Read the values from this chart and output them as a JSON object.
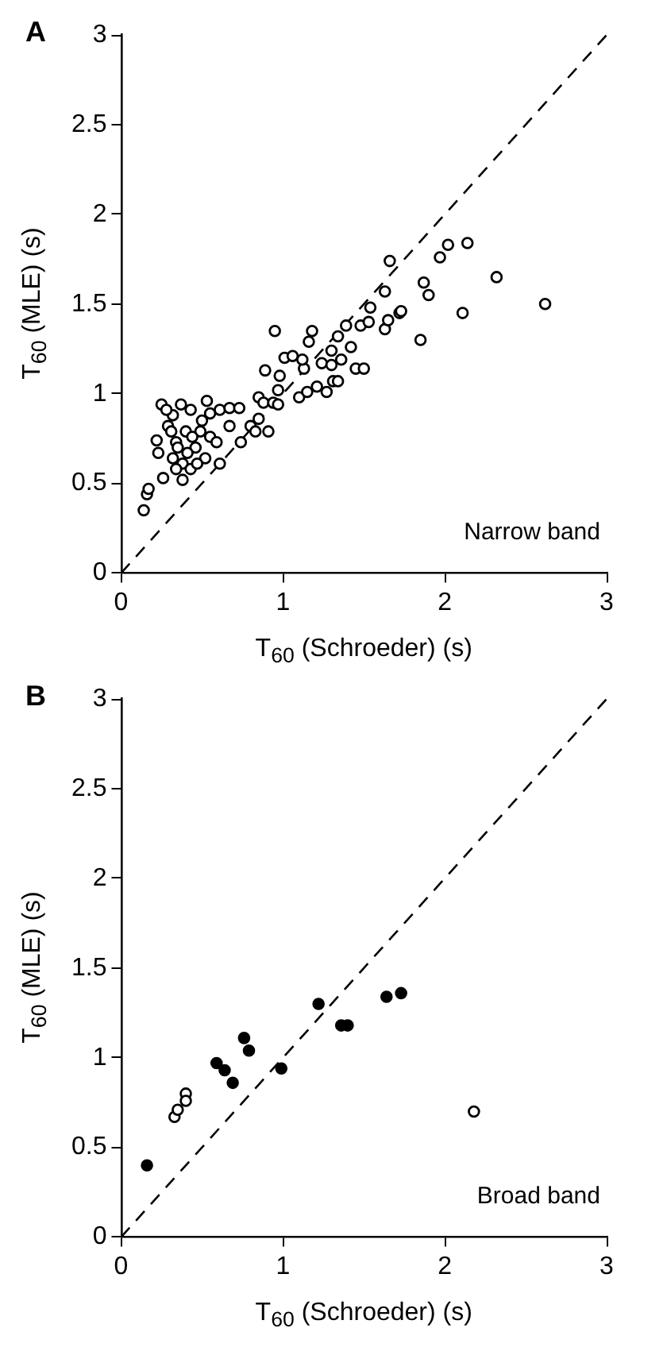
{
  "chart_data": [
    {
      "type": "scatter",
      "title": "A",
      "xlabel": "T$_{60}$ (Schroeder) (s)",
      "ylabel": "T$_{60}$ (MLE) (s)",
      "xlim": [
        0,
        3
      ],
      "ylim": [
        0,
        3
      ],
      "xticks": [
        0,
        1,
        2,
        3
      ],
      "yticks": [
        0,
        0.5,
        1,
        1.5,
        2,
        2.5,
        3
      ],
      "marker": "circle",
      "annotations": [
        "Narrow band"
      ],
      "series": [
        {
          "color": "#ffffff",
          "x": [
            0.14,
            0.16,
            0.17,
            0.25,
            0.22,
            0.23,
            0.26,
            0.38,
            0.29,
            0.32,
            0.37,
            0.43,
            0.53,
            0.55,
            0.61,
            0.67,
            0.73,
            0.34,
            0.4,
            0.46,
            0.52,
            0.38,
            0.32,
            0.43,
            0.49,
            0.55,
            0.59,
            0.61,
            0.67,
            0.28,
            0.35,
            0.44,
            0.5,
            0.31,
            0.41,
            0.47,
            0.34,
            0.74,
            0.8,
            0.85,
            0.83,
            0.91,
            0.89,
            0.95,
            0.85,
            0.88,
            0.94,
            0.97,
            0.98,
            1.01,
            0.97,
            1.06,
            1.1,
            1.15,
            1.13,
            1.16,
            1.18,
            1.21,
            1.12,
            1.24,
            1.27,
            1.3,
            1.3,
            1.34,
            1.31,
            1.34,
            1.36,
            1.39,
            1.42,
            1.45,
            1.5,
            1.48,
            1.54,
            1.53,
            1.63,
            1.63,
            1.65,
            1.66,
            1.72,
            1.73,
            1.85,
            1.87,
            1.9,
            1.97,
            2.02,
            2.14,
            2.11,
            2.32,
            2.62
          ],
          "values": [
            0.35,
            0.44,
            0.47,
            0.94,
            0.74,
            0.67,
            0.53,
            0.52,
            0.82,
            0.88,
            0.94,
            0.91,
            0.96,
            0.89,
            0.91,
            0.92,
            0.92,
            0.73,
            0.79,
            0.7,
            0.64,
            0.61,
            0.64,
            0.58,
            0.79,
            0.76,
            0.73,
            0.61,
            0.82,
            0.91,
            0.7,
            0.76,
            0.85,
            0.79,
            0.67,
            0.61,
            0.58,
            0.73,
            0.82,
            0.86,
            0.79,
            0.79,
            1.13,
            1.35,
            0.98,
            0.95,
            0.95,
            1.02,
            1.1,
            1.2,
            0.94,
            1.21,
            0.98,
            1.01,
            1.14,
            1.29,
            1.35,
            1.04,
            1.19,
            1.17,
            1.01,
            1.16,
            1.24,
            1.32,
            1.07,
            1.07,
            1.19,
            1.38,
            1.26,
            1.14,
            1.14,
            1.38,
            1.48,
            1.4,
            1.57,
            1.36,
            1.41,
            1.74,
            1.45,
            1.46,
            1.3,
            1.62,
            1.55,
            1.76,
            1.83,
            1.84,
            1.45,
            1.65,
            1.5
          ]
        },
        {
          "type": "line",
          "x": [
            0,
            3
          ],
          "values": [
            0,
            3
          ],
          "color": "#000000",
          "line_style": "dashed",
          "marker": "none"
        }
      ]
    },
    {
      "type": "scatter",
      "title": "B",
      "xlabel": "T$_{60}$ (Schroeder) (s)",
      "ylabel": "T$_{60}$ (MLE) (s)",
      "xlim": [
        0,
        3
      ],
      "ylim": [
        0,
        3
      ],
      "xticks": [
        0,
        1,
        2,
        3
      ],
      "yticks": [
        0,
        0.5,
        1,
        1.5,
        2,
        2.5,
        3
      ],
      "marker": "circle",
      "annotations": [
        "Broad band"
      ],
      "series": [
        {
          "color": "#000000",
          "x": [
            0.16,
            0.59,
            0.64,
            0.69,
            0.76,
            0.79,
            0.99,
            1.22,
            1.36,
            1.4,
            1.64,
            1.73
          ],
          "values": [
            0.4,
            0.97,
            0.93,
            0.86,
            1.11,
            1.04,
            0.94,
            1.3,
            1.18,
            1.18,
            1.34,
            1.36
          ]
        },
        {
          "color": "#ffffff",
          "x": [
            0.33,
            0.35,
            0.4,
            0.4,
            2.18
          ],
          "values": [
            0.67,
            0.71,
            0.8,
            0.76,
            0.7
          ]
        },
        {
          "type": "line",
          "x": [
            0,
            3
          ],
          "values": [
            0,
            3
          ],
          "color": "#000000",
          "line_style": "dashed",
          "marker": "none"
        }
      ]
    }
  ]
}
